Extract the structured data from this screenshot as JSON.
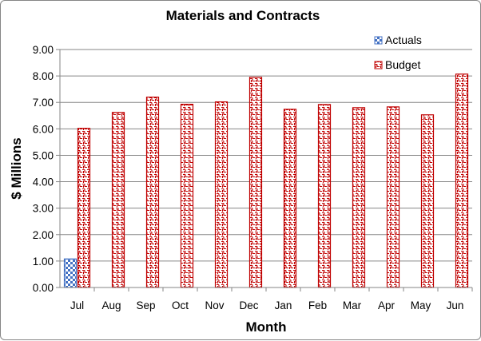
{
  "chart_data": {
    "type": "bar",
    "title": "Materials and Contracts",
    "xlabel": "Month",
    "ylabel": "$ Millions",
    "categories": [
      "Jul",
      "Aug",
      "Sep",
      "Oct",
      "Nov",
      "Dec",
      "Jan",
      "Feb",
      "Mar",
      "Apr",
      "May",
      "Jun"
    ],
    "series": [
      {
        "name": "Actuals",
        "values": [
          1.08,
          null,
          null,
          null,
          null,
          null,
          null,
          null,
          null,
          null,
          null,
          null
        ],
        "color": "#4472c4",
        "pattern": "checker"
      },
      {
        "name": "Budget",
        "values": [
          6.02,
          6.62,
          7.2,
          6.93,
          7.02,
          7.95,
          6.74,
          6.92,
          6.8,
          6.83,
          6.53,
          8.07
        ],
        "color": "#c00000",
        "pattern": "weave"
      }
    ],
    "ylim": [
      0,
      9
    ],
    "yticks": [
      "0.00",
      "1.00",
      "2.00",
      "3.00",
      "4.00",
      "5.00",
      "6.00",
      "7.00",
      "8.00",
      "9.00"
    ],
    "grid": true,
    "legend_position": "top-right"
  }
}
